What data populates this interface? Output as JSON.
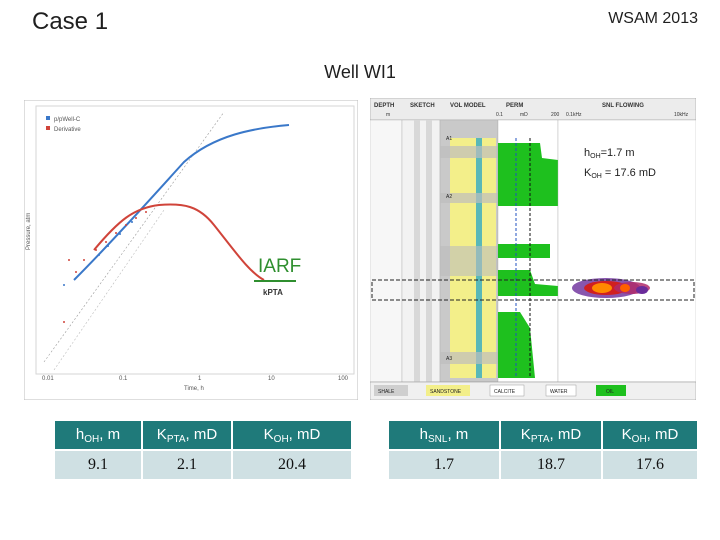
{
  "header": {
    "case_title": "Case 1",
    "conference": "WSAM 2013"
  },
  "well_title": "Well WI1",
  "plot": {
    "legend": [
      "p/pWell-C",
      "Derivative"
    ],
    "xlabel": "Time, h",
    "ylabel": "Pressure, atm",
    "x_ticks": [
      "0.01",
      "0.1",
      "1",
      "10",
      "100"
    ],
    "iarf_label": "IARF",
    "kpta_label": "kPTA"
  },
  "log": {
    "track_headers": [
      "DEPTH",
      "SKETCH",
      "VOL MODEL",
      "PERM",
      "SNL FLOWING"
    ],
    "perm_scale": [
      "0.1",
      "mD",
      "200"
    ],
    "snl_scale": [
      "0.1kHz",
      "10kHz"
    ],
    "depth_unit": "m",
    "zones": [
      "A1",
      "A2",
      "A3"
    ],
    "legend": [
      "SHALE",
      "SANDSTONE",
      "CALCITE",
      "WATER",
      "OIL"
    ],
    "hoh_annotation": {
      "line1_main": "h",
      "line1_sub": "OH",
      "line1_rest": "=1.7 m",
      "line2_main": "K",
      "line2_sub": "OH",
      "line2_rest": " = 17.6 mD"
    }
  },
  "table_left": {
    "headers": [
      {
        "main": "h",
        "sub": "OH",
        "rest": ", m"
      },
      {
        "main": "K",
        "sub": "PTA",
        "rest": ", mD"
      },
      {
        "main": "K",
        "sub": "OH",
        "rest": ", mD"
      }
    ],
    "values": [
      "9.1",
      "2.1",
      "20.4"
    ]
  },
  "table_right": {
    "headers": [
      {
        "main": "h",
        "sub": "SNL",
        "rest": ", m"
      },
      {
        "main": "K",
        "sub": "PTA",
        "rest": ", mD"
      },
      {
        "main": "K",
        "sub": "OH",
        "rest": ", mD"
      }
    ],
    "values": [
      "1.7",
      "18.7",
      "17.6"
    ]
  },
  "colors": {
    "table_header": "#1f7a7a",
    "table_cell": "#cfe0e3",
    "pressure_curve": "#3a78c9",
    "derivative_curve": "#d0443a",
    "iarf_line": "#2f8f2f"
  }
}
